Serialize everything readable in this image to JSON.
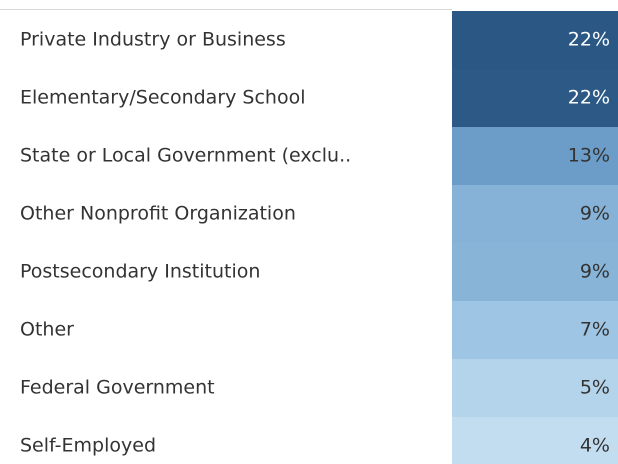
{
  "chart_data": {
    "type": "highlight-table",
    "categories": [
      "Private Industry or Business",
      "Elementary/Secondary School",
      "State or Local Government (exclu..",
      "Other Nonprofit Organization",
      "Postsecondary Institution",
      "Other",
      "Federal Government",
      "Self-Employed"
    ],
    "values": [
      22,
      22,
      13,
      9,
      9,
      7,
      5,
      4
    ],
    "value_labels": [
      "22%",
      "22%",
      "13%",
      "9%",
      "9%",
      "7%",
      "5%",
      "4%"
    ],
    "colors": [
      "#2a5783",
      "#2c5985",
      "#6b9dc8",
      "#86b2d7",
      "#88b4d8",
      "#9ec5e3",
      "#b4d4ec",
      "#c3ddf0"
    ]
  }
}
